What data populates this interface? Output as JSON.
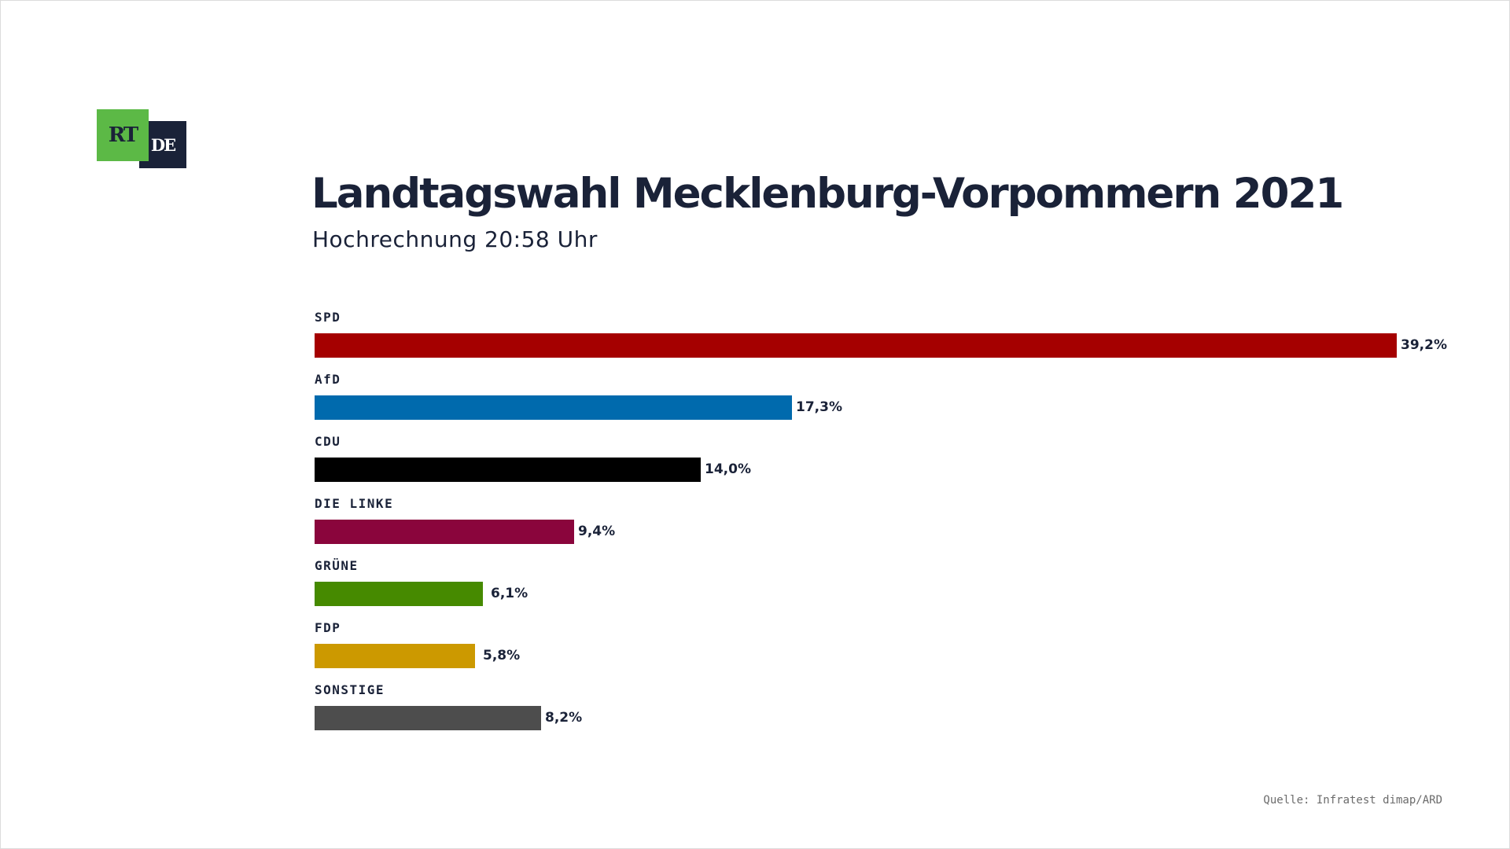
{
  "logo": {
    "rt_text": "RT",
    "de_text": "DE",
    "rt_color": "#5cb946",
    "de_color": "#1a2238"
  },
  "chart_data": {
    "type": "bar",
    "orientation": "horizontal",
    "title": "Landtagswahl Mecklenburg-Vorpommern 2021",
    "subtitle": "Hochrechnung 20:58 Uhr",
    "categories": [
      "SPD",
      "AfD",
      "CDU",
      "DIE LINKE",
      "GRÜNE",
      "FDP",
      "SONSTIGE"
    ],
    "values": [
      39.2,
      17.3,
      14.0,
      9.4,
      6.1,
      5.8,
      8.2
    ],
    "value_labels": [
      "39,2%",
      "17,3%",
      "14,0%",
      "9,4%",
      "6,1%",
      "5,8%",
      "8,2%"
    ],
    "colors": [
      "#a50000",
      "#006aad",
      "#000000",
      "#8a053c",
      "#468a00",
      "#cc9900",
      "#4d4d4d"
    ],
    "unit": "%",
    "xlim": [
      0,
      39.2
    ],
    "grid": false,
    "legend": "none",
    "source": "Quelle: Infratest dimap/ARD"
  }
}
